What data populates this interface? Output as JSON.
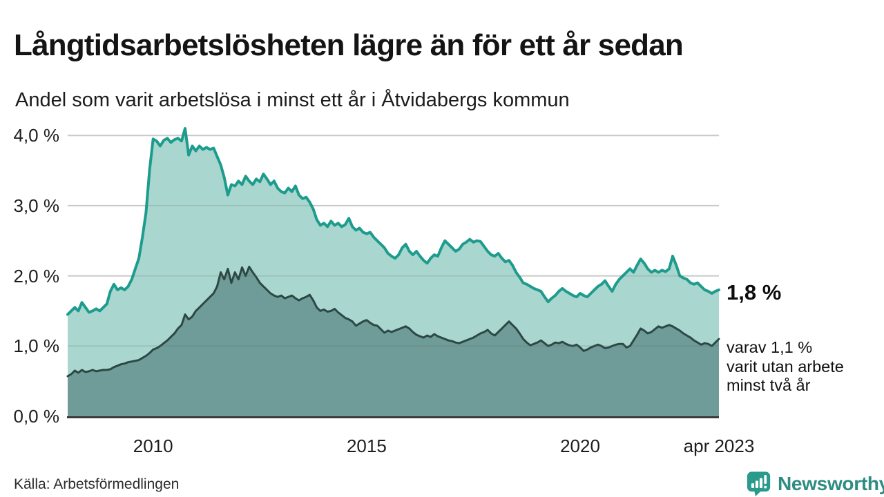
{
  "header": {
    "title": "Långtidsarbetslösheten lägre än för ett år sedan",
    "subtitle": "Andel som varit arbetslösa i minst ett år i Åtvidabergs kommun"
  },
  "chart_data": {
    "type": "area",
    "title": "Långtidsarbetslösheten lägre än för ett år sedan",
    "subtitle": "Andel som varit arbetslösa i minst ett år i Åtvidabergs kommun",
    "unit": "%",
    "frequency": "monthly",
    "x_start": "2008-01",
    "x_end": "2023-04",
    "ylim": [
      0,
      4.35
    ],
    "grid": true,
    "colors": {
      "grid": "#dedede",
      "axis": "#3a3a3a",
      "accent_teal": "#1d9c8e",
      "logo_teal": "#2a9a8c",
      "logo_text": "#2e8c82"
    },
    "y_ticks": [
      {
        "label": "0,0 %",
        "value": 0
      },
      {
        "label": "1,0 %",
        "value": 1
      },
      {
        "label": "2,0 %",
        "value": 2
      },
      {
        "label": "3,0 %",
        "value": 3
      },
      {
        "label": "4,0 %",
        "value": 4
      }
    ],
    "x_ticks": [
      {
        "label": "2010",
        "month_index": 24
      },
      {
        "label": "2015",
        "month_index": 84
      },
      {
        "label": "2020",
        "month_index": 144
      },
      {
        "label": "apr 2023",
        "month_index": 183
      }
    ],
    "series": [
      {
        "name": "Arbetslösa minst ett år",
        "line_color": "#1d9c8e",
        "fill_color": "#a9d6ce",
        "line_width": 4,
        "latest_value": 1.8,
        "values": [
          1.45,
          1.5,
          1.55,
          1.5,
          1.62,
          1.55,
          1.48,
          1.5,
          1.53,
          1.5,
          1.55,
          1.6,
          1.78,
          1.88,
          1.8,
          1.83,
          1.8,
          1.85,
          1.95,
          2.1,
          2.25,
          2.55,
          2.9,
          3.5,
          3.95,
          3.92,
          3.85,
          3.93,
          3.96,
          3.9,
          3.94,
          3.96,
          3.92,
          4.1,
          3.72,
          3.85,
          3.78,
          3.85,
          3.8,
          3.83,
          3.8,
          3.82,
          3.7,
          3.58,
          3.4,
          3.15,
          3.3,
          3.28,
          3.35,
          3.3,
          3.42,
          3.35,
          3.3,
          3.38,
          3.34,
          3.45,
          3.38,
          3.3,
          3.35,
          3.25,
          3.2,
          3.18,
          3.25,
          3.2,
          3.28,
          3.15,
          3.1,
          3.12,
          3.05,
          2.95,
          2.8,
          2.72,
          2.75,
          2.7,
          2.78,
          2.72,
          2.75,
          2.7,
          2.73,
          2.82,
          2.7,
          2.65,
          2.68,
          2.62,
          2.6,
          2.62,
          2.55,
          2.5,
          2.45,
          2.4,
          2.32,
          2.28,
          2.25,
          2.3,
          2.4,
          2.45,
          2.35,
          2.3,
          2.35,
          2.28,
          2.22,
          2.18,
          2.25,
          2.3,
          2.28,
          2.4,
          2.5,
          2.45,
          2.4,
          2.35,
          2.38,
          2.45,
          2.48,
          2.52,
          2.48,
          2.5,
          2.49,
          2.42,
          2.35,
          2.3,
          2.28,
          2.32,
          2.25,
          2.2,
          2.22,
          2.15,
          2.05,
          1.98,
          1.9,
          1.88,
          1.85,
          1.82,
          1.8,
          1.78,
          1.7,
          1.63,
          1.68,
          1.72,
          1.78,
          1.82,
          1.78,
          1.75,
          1.72,
          1.7,
          1.75,
          1.72,
          1.7,
          1.75,
          1.8,
          1.85,
          1.88,
          1.93,
          1.85,
          1.78,
          1.88,
          1.95,
          2.0,
          2.05,
          2.1,
          2.05,
          2.15,
          2.24,
          2.18,
          2.1,
          2.05,
          2.08,
          2.05,
          2.08,
          2.06,
          2.1,
          2.28,
          2.15,
          2.0,
          1.97,
          1.95,
          1.9,
          1.88,
          1.9,
          1.85,
          1.8,
          1.78,
          1.75,
          1.78,
          1.8
        ]
      },
      {
        "name": "Varav arbetslösa minst två år",
        "line_color": "#2c4845",
        "fill_color": "#6f9c98",
        "line_width": 3,
        "latest_value": 1.1,
        "values": [
          0.57,
          0.6,
          0.65,
          0.62,
          0.66,
          0.63,
          0.64,
          0.66,
          0.64,
          0.65,
          0.66,
          0.66,
          0.67,
          0.7,
          0.72,
          0.74,
          0.75,
          0.77,
          0.78,
          0.79,
          0.8,
          0.83,
          0.86,
          0.9,
          0.95,
          0.97,
          1.0,
          1.04,
          1.08,
          1.13,
          1.18,
          1.25,
          1.3,
          1.45,
          1.38,
          1.42,
          1.5,
          1.55,
          1.6,
          1.65,
          1.7,
          1.75,
          1.85,
          2.05,
          1.95,
          2.1,
          1.9,
          2.05,
          1.95,
          2.12,
          2.0,
          2.13,
          2.05,
          1.98,
          1.9,
          1.85,
          1.8,
          1.75,
          1.72,
          1.7,
          1.72,
          1.68,
          1.7,
          1.72,
          1.68,
          1.65,
          1.68,
          1.7,
          1.73,
          1.65,
          1.55,
          1.5,
          1.52,
          1.49,
          1.5,
          1.53,
          1.48,
          1.44,
          1.4,
          1.38,
          1.35,
          1.29,
          1.32,
          1.35,
          1.37,
          1.33,
          1.3,
          1.29,
          1.24,
          1.19,
          1.22,
          1.2,
          1.22,
          1.24,
          1.26,
          1.28,
          1.25,
          1.2,
          1.16,
          1.14,
          1.12,
          1.15,
          1.13,
          1.17,
          1.14,
          1.12,
          1.1,
          1.08,
          1.07,
          1.05,
          1.04,
          1.06,
          1.08,
          1.1,
          1.12,
          1.15,
          1.18,
          1.2,
          1.23,
          1.18,
          1.15,
          1.2,
          1.25,
          1.3,
          1.35,
          1.3,
          1.25,
          1.18,
          1.1,
          1.05,
          1.01,
          1.03,
          1.05,
          1.08,
          1.04,
          1.0,
          1.02,
          1.05,
          1.04,
          1.06,
          1.03,
          1.01,
          1.0,
          1.02,
          0.98,
          0.93,
          0.95,
          0.98,
          1.0,
          1.02,
          1.0,
          0.97,
          0.98,
          1.0,
          1.02,
          1.03,
          1.03,
          0.98,
          1.0,
          1.08,
          1.16,
          1.25,
          1.22,
          1.18,
          1.2,
          1.24,
          1.28,
          1.26,
          1.28,
          1.3,
          1.28,
          1.25,
          1.22,
          1.18,
          1.15,
          1.12,
          1.08,
          1.05,
          1.02,
          1.04,
          1.03,
          1.0,
          1.05,
          1.1
        ]
      }
    ],
    "annotations": {
      "latest_value_label": "1,8 %",
      "sub_lines": [
        "varav 1,1 %",
        "varit utan arbete",
        "minst två år"
      ]
    }
  },
  "footer": {
    "source": "Källa: Arbetsförmedlingen",
    "logo_text": "Newsworthy"
  }
}
